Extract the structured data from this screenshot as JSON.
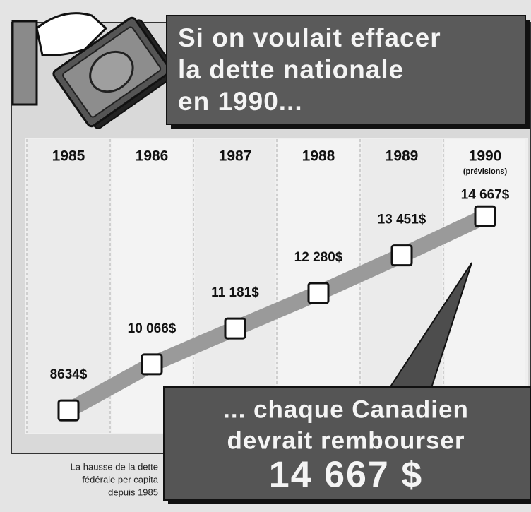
{
  "chart_data": {
    "type": "line",
    "title": [
      "Si on voulait effacer",
      "la dette nationale",
      "en 1990..."
    ],
    "categories": [
      "1985",
      "1986",
      "1987",
      "1988",
      "1989",
      "1990"
    ],
    "category_notes": [
      null,
      null,
      null,
      null,
      null,
      "(prévisions)"
    ],
    "values": [
      8634,
      10066,
      11181,
      12280,
      13451,
      14667
    ],
    "value_labels": [
      "8634$",
      "10 066$",
      "11 181$",
      "12 280$",
      "13 451$",
      "14 667$"
    ],
    "color": "#9a9a9a",
    "ylim": [
      8000,
      17000
    ],
    "annotation": [
      "... chaque Canadien",
      "devrait rembourser",
      "14 667 $"
    ],
    "caption": [
      "La hausse de la dette",
      "fédérale per capita",
      "depuis 1985"
    ]
  }
}
